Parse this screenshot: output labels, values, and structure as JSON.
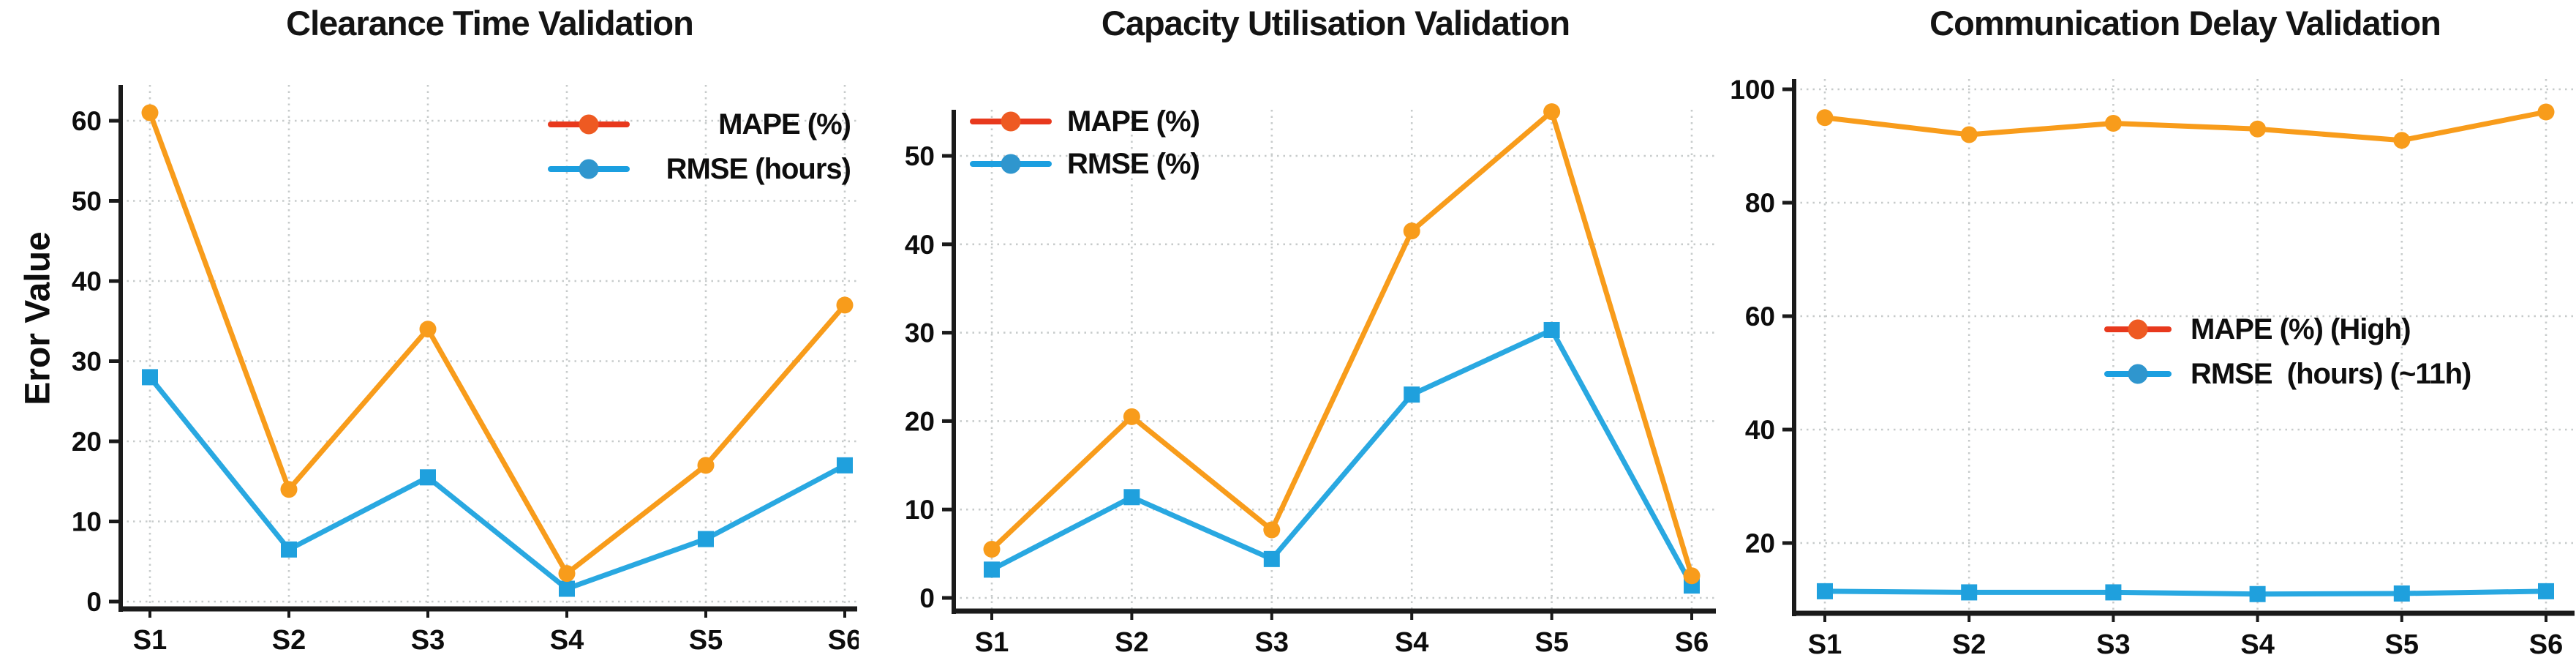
{
  "figure": {
    "background": "#ffffff",
    "axis_color": "#1a1a1a",
    "grid_color": "#c7cbcb",
    "text_color": "#0d0d0d"
  },
  "chart_data": [
    {
      "type": "line",
      "title": "Clearance Time Validation",
      "xlabel": "",
      "ylabel": "Eror Value",
      "categories": [
        "S1",
        "S2",
        "S3",
        "S4",
        "S5",
        "S6"
      ],
      "y_ticks": [
        0,
        10,
        20,
        30,
        40,
        50,
        60
      ],
      "ylim": [
        -1,
        64.5
      ],
      "grid": true,
      "legend_position": "top-right",
      "series": [
        {
          "name": "MAPE (%)",
          "values": [
            61,
            14,
            34,
            3.5,
            17,
            37
          ],
          "line_color": "#F89C1B",
          "marker": "circle",
          "marker_color": "#F89C1B",
          "legend_line_color": "#E8391D",
          "legend_marker_color": "#EE5A22"
        },
        {
          "name": "RMSE (hours)",
          "values": [
            28,
            6.5,
            15.5,
            1.6,
            7.8,
            17
          ],
          "line_color": "#29A8E1",
          "marker": "square",
          "marker_color": "#1FA0DD",
          "legend_line_color": "#1B9FE0",
          "legend_marker_color": "#2F96CE"
        }
      ]
    },
    {
      "type": "line",
      "title": "Capacity Utilisation Validation",
      "xlabel": "",
      "ylabel": "",
      "categories": [
        "S1",
        "S2",
        "S3",
        "S4",
        "S5",
        "S6"
      ],
      "y_ticks": [
        0,
        10,
        20,
        30,
        40,
        50
      ],
      "ylim": [
        -1.5,
        55.2
      ],
      "grid": true,
      "legend_position": "top-left",
      "series": [
        {
          "name": "MAPE (%)",
          "values": [
            5.5,
            20.5,
            7.7,
            41.5,
            55,
            2.5
          ],
          "line_color": "#F89C1B",
          "marker": "circle",
          "marker_color": "#F89C1B",
          "legend_line_color": "#E8391D",
          "legend_marker_color": "#EE5A22"
        },
        {
          "name": "RMSE (%)",
          "values": [
            3.2,
            11.4,
            4.4,
            23,
            30.3,
            1.4
          ],
          "line_color": "#29A8E1",
          "marker": "square",
          "marker_color": "#1FA0DD",
          "legend_line_color": "#1B9FE0",
          "legend_marker_color": "#2F96CE"
        }
      ]
    },
    {
      "type": "line",
      "title": "Communication Delay Validation",
      "xlabel": "",
      "ylabel": "",
      "categories": [
        "S1",
        "S2",
        "S3",
        "S4",
        "S5",
        "S6"
      ],
      "y_ticks": [
        20,
        40,
        60,
        80,
        100
      ],
      "ylim": [
        7.6,
        101.8
      ],
      "grid": true,
      "legend_position": "middle-right",
      "series": [
        {
          "name": "MAPE (%) (High)",
          "values": [
            95,
            92,
            94,
            93,
            91,
            96
          ],
          "line_color": "#F89C1B",
          "marker": "circle",
          "marker_color": "#F89C1B",
          "legend_line_color": "#E8391D",
          "legend_marker_color": "#EE5A22"
        },
        {
          "name": "RMSE  (hours) (~11h)",
          "values": [
            11.5,
            11.3,
            11.3,
            11.0,
            11.1,
            11.5
          ],
          "line_color": "#29A8E1",
          "marker": "square",
          "marker_color": "#1FA0DD",
          "legend_line_color": "#1B9FE0",
          "legend_marker_color": "#2F96CE"
        }
      ]
    }
  ]
}
